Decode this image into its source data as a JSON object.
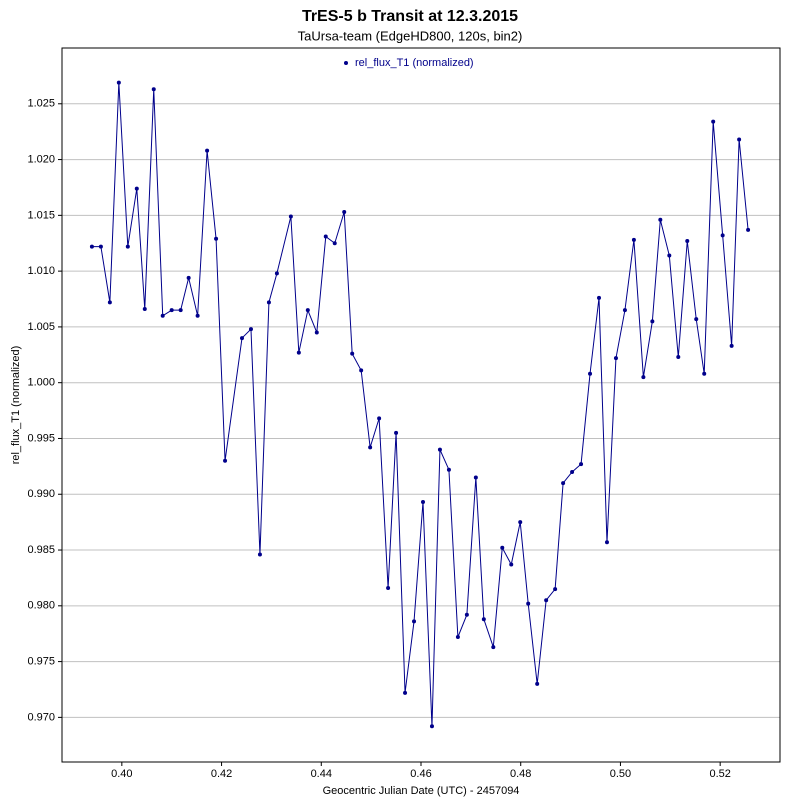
{
  "chart_data": {
    "type": "line",
    "title": "TrES-5 b Transit at 12.3.2015",
    "subtitle": "TaUrsa-team (EdgeHD800, 120s, bin2)",
    "x_label": "Geocentric Julian Date (UTC) - 2457094",
    "y_label": "rel_flux_T1 (normalized)",
    "grid": true,
    "legend": "top",
    "xlim": [
      0.388,
      0.532
    ],
    "ylim": [
      0.966,
      1.03
    ],
    "xticks": [
      {
        "value": 0.4,
        "label": "0.40"
      },
      {
        "value": 0.42,
        "label": "0.42"
      },
      {
        "value": 0.44,
        "label": "0.44"
      },
      {
        "value": 0.46,
        "label": "0.46"
      },
      {
        "value": 0.48,
        "label": "0.48"
      },
      {
        "value": 0.5,
        "label": "0.50"
      },
      {
        "value": 0.52,
        "label": "0.52"
      }
    ],
    "yticks": [
      {
        "value": 0.97,
        "label": "0.970"
      },
      {
        "value": 0.975,
        "label": "0.975"
      },
      {
        "value": 0.98,
        "label": "0.980"
      },
      {
        "value": 0.985,
        "label": "0.985"
      },
      {
        "value": 0.99,
        "label": "0.990"
      },
      {
        "value": 0.995,
        "label": "0.995"
      },
      {
        "value": 1.0,
        "label": "1.000"
      },
      {
        "value": 1.005,
        "label": "1.005"
      },
      {
        "value": 1.01,
        "label": "1.010"
      },
      {
        "value": 1.015,
        "label": "1.015"
      },
      {
        "value": 1.02,
        "label": "1.020"
      },
      {
        "value": 1.025,
        "label": "1.025"
      }
    ],
    "x": [
      0.394,
      0.3958,
      0.3976,
      0.3994,
      0.4012,
      0.403,
      0.4046,
      0.4064,
      0.4082,
      0.41,
      0.4118,
      0.4134,
      0.4152,
      0.4171,
      0.4189,
      0.4207,
      0.4241,
      0.4259,
      0.4277,
      0.4295,
      0.4311,
      0.4339,
      0.4355,
      0.4373,
      0.4391,
      0.4409,
      0.4427,
      0.4446,
      0.4462,
      0.448,
      0.4498,
      0.4516,
      0.4534,
      0.455,
      0.4568,
      0.4586,
      0.4604,
      0.4622,
      0.4638,
      0.4656,
      0.4674,
      0.4692,
      0.471,
      0.4726,
      0.4745,
      0.4763,
      0.4781,
      0.4799,
      0.4815,
      0.4833,
      0.4851,
      0.4869,
      0.4885,
      0.4903,
      0.4921,
      0.4939,
      0.4957,
      0.4973,
      0.4991,
      0.5009,
      0.5027,
      0.5046,
      0.5064,
      0.508,
      0.5098,
      0.5116,
      0.5134,
      0.5152,
      0.5168,
      0.5186,
      0.5205,
      0.5223,
      0.5238,
      0.5256
    ],
    "series": [
      {
        "name": "rel_flux_T1 (normalized)",
        "color": "#00008b",
        "values": [
          1.0122,
          1.0122,
          1.0072,
          1.0269,
          1.0122,
          1.0174,
          1.0066,
          1.0263,
          1.006,
          1.0065,
          1.0065,
          1.0094,
          1.006,
          1.0208,
          1.0129,
          0.993,
          1.004,
          1.0048,
          0.9846,
          1.0072,
          1.0098,
          1.0149,
          1.0027,
          1.0065,
          1.0045,
          1.0131,
          1.0125,
          1.0153,
          1.0026,
          1.0011,
          0.9942,
          0.9968,
          0.9816,
          0.9955,
          0.9722,
          0.9786,
          0.9893,
          0.9692,
          0.994,
          0.9922,
          0.9772,
          0.9792,
          0.9915,
          0.9788,
          0.9763,
          0.9852,
          0.9837,
          0.9875,
          0.9802,
          0.973,
          0.9805,
          0.9815,
          0.991,
          0.992,
          0.9927,
          1.0008,
          1.0076,
          0.9857,
          1.0022,
          1.0065,
          1.0128,
          1.0005,
          1.0055,
          1.0146,
          1.0114,
          1.0023,
          1.0127,
          1.0057,
          1.0008,
          1.0234,
          1.0132,
          1.0033,
          1.0218,
          1.0137
        ]
      }
    ]
  }
}
